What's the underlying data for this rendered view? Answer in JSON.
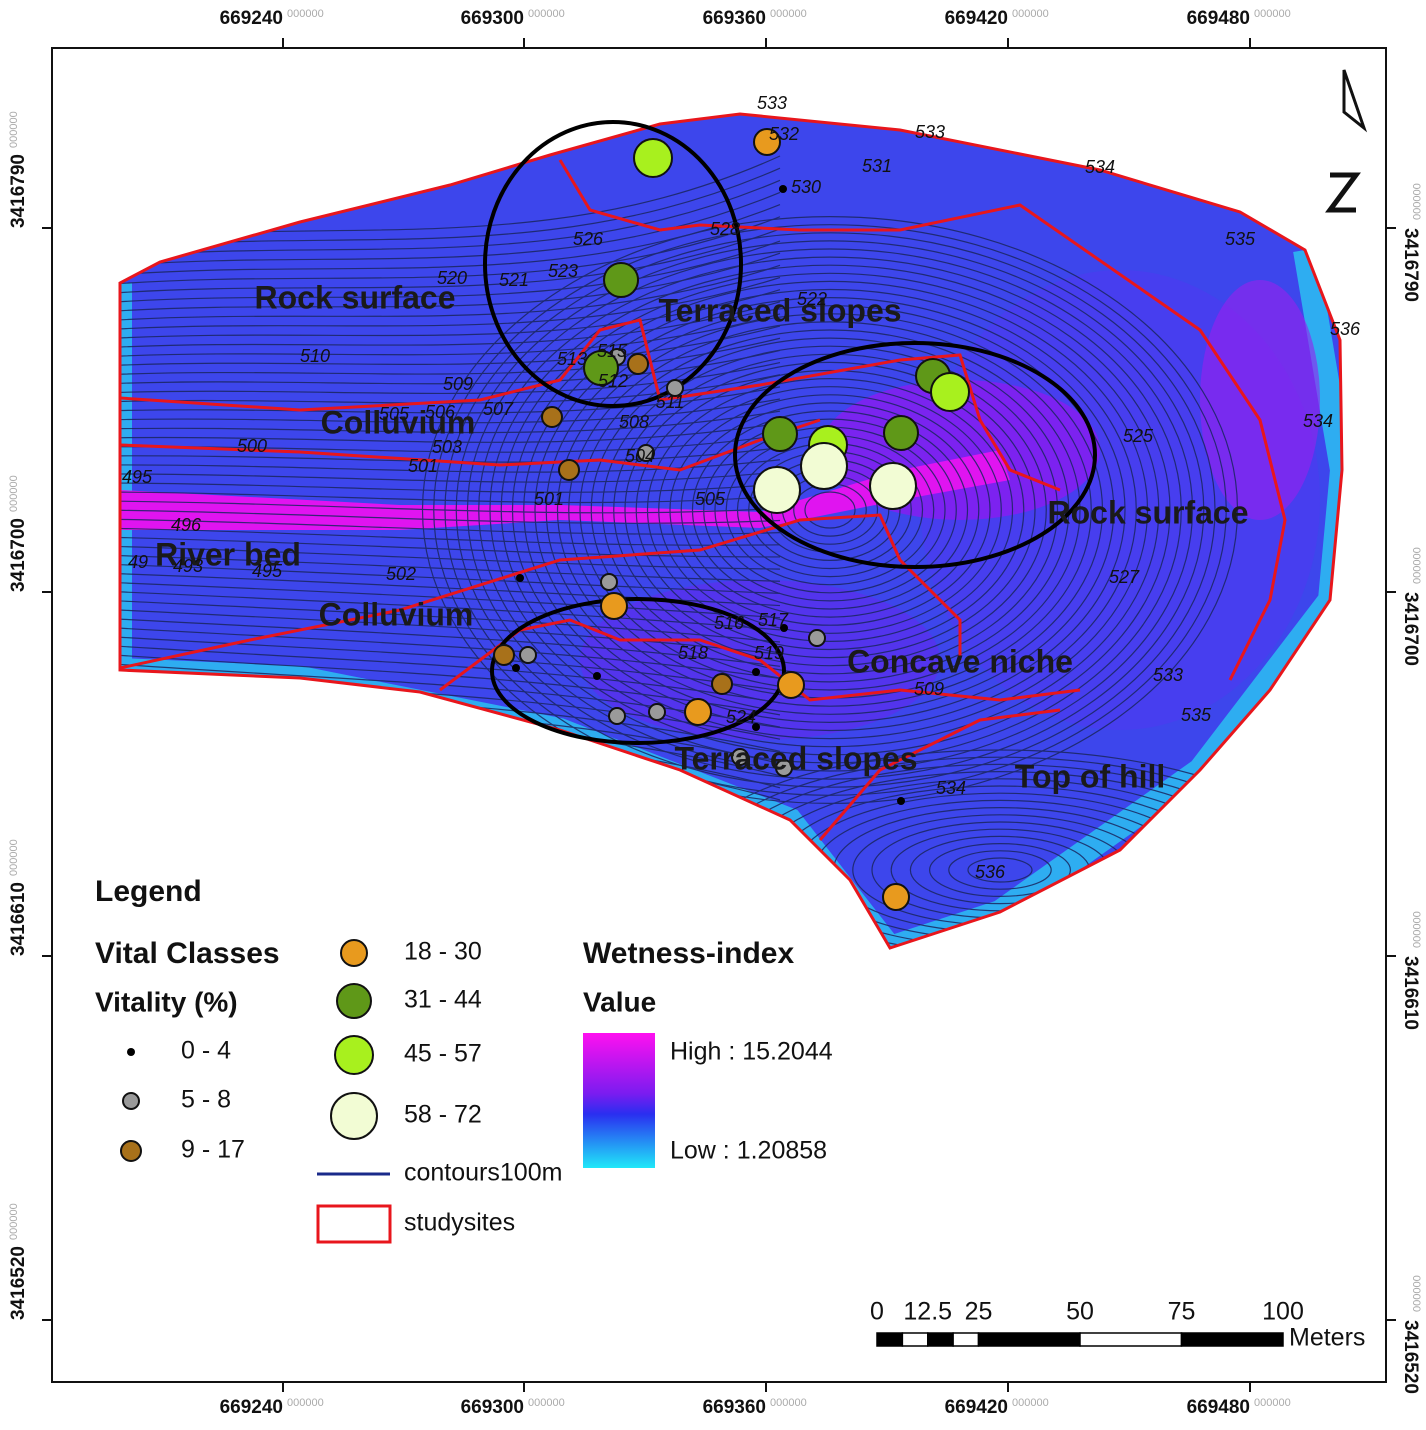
{
  "map": {
    "x_labels": [
      {
        "label": "669240",
        "suffix": "000000"
      },
      {
        "label": "669300",
        "suffix": "000000"
      },
      {
        "label": "669360",
        "suffix": "000000"
      },
      {
        "label": "669420",
        "suffix": "000000"
      },
      {
        "label": "669480",
        "suffix": "000000"
      }
    ],
    "y_labels": [
      {
        "label": "3416790",
        "suffix": "000000"
      },
      {
        "label": "3416700",
        "suffix": "000000"
      },
      {
        "label": "3416610",
        "suffix": "000000"
      },
      {
        "label": "3416520",
        "suffix": "000000"
      }
    ],
    "regions": [
      "Rock surface",
      "Terraced slopes",
      "Colluvium",
      "River bed",
      "Colluvium",
      "Concave niche",
      "Terraced slopes",
      "Top of hill",
      "Rock surface"
    ],
    "contour_labels": [
      "533",
      "532",
      "533",
      "531",
      "530",
      "534",
      "528",
      "526",
      "523",
      "521",
      "520",
      "522",
      "535",
      "536",
      "510",
      "509",
      "513",
      "515",
      "512",
      "511",
      "507",
      "505",
      "506",
      "508",
      "503",
      "500",
      "501",
      "504",
      "495",
      "501",
      "505",
      "496",
      "525",
      "534",
      "502",
      "49",
      "493",
      "495",
      "516",
      "517",
      "518",
      "519",
      "527",
      "509",
      "533",
      "535",
      "524",
      "534",
      "536"
    ],
    "legend": {
      "title": "Legend",
      "classes_title": "Vital Classes",
      "vitality_title": "Vitality (%)",
      "classes": [
        {
          "label": "0 - 4",
          "color": "#000000"
        },
        {
          "label": "5 - 8",
          "color": "#9a9a9a"
        },
        {
          "label": "9 - 17",
          "color": "#a8711a"
        },
        {
          "label": "18 - 30",
          "color": "#e89a1e"
        },
        {
          "label": "31 - 44",
          "color": "#5f9818"
        },
        {
          "label": "45 - 57",
          "color": "#a8f01e"
        },
        {
          "label": "58 - 72",
          "color": "#f2fcd4"
        }
      ],
      "contours": "contours100m",
      "studysites": "studysites",
      "wetness_title": "Wetness-index",
      "value_title": "Value",
      "high": "High : 15.2044",
      "low": "Low : 1.20858"
    },
    "scale": {
      "ticks": [
        0,
        12.5,
        25,
        50,
        75,
        100
      ],
      "unit": "Meters"
    }
  }
}
